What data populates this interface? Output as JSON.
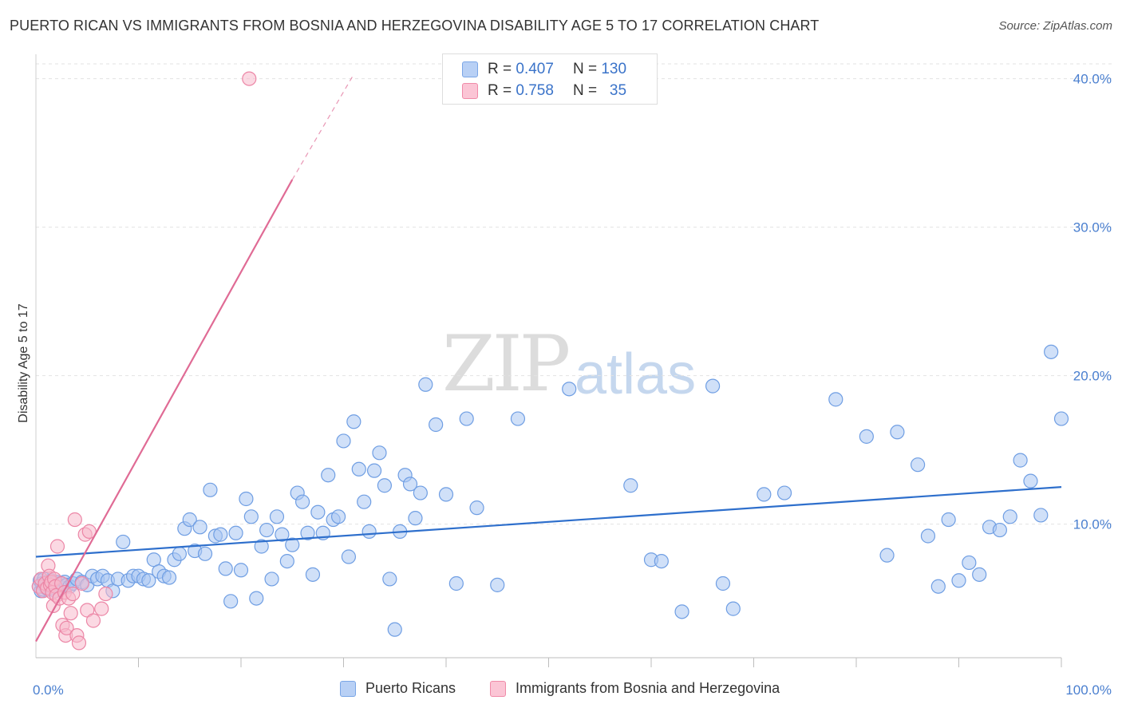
{
  "title": "PUERTO RICAN VS IMMIGRANTS FROM BOSNIA AND HERZEGOVINA DISABILITY AGE 5 TO 17 CORRELATION CHART",
  "source": "Source: ZipAtlas.com",
  "watermark": {
    "zip": "ZIP",
    "atlas": "atlas"
  },
  "legend_top": {
    "rows": [
      {
        "r_label": "R =",
        "r_value": "0.407",
        "n_label": "N =",
        "n_value": "130"
      },
      {
        "r_label": "R =",
        "r_value": "0.758",
        "n_label": "N =",
        "n_value": "35"
      }
    ]
  },
  "legend_bottom": [
    "Puerto Ricans",
    "Immigrants from Bosnia and Herzegovina"
  ],
  "colors": {
    "blue_fill": "#a9c6f2",
    "blue_stroke": "#6f9ee3",
    "blue_line": "#2e6fcc",
    "pink_fill": "#f7b9cc",
    "pink_stroke": "#ec86a6",
    "pink_line": "#e06b95"
  },
  "chart_data": {
    "type": "scatter",
    "title": "PUERTO RICAN VS IMMIGRANTS FROM BOSNIA AND HERZEGOVINA DISABILITY AGE 5 TO 17 CORRELATION CHART",
    "xlabel": "",
    "ylabel": "Disability Age 5 to 17",
    "xlim": [
      0,
      100
    ],
    "ylim": [
      1,
      41
    ],
    "x_tick_labels": [
      "0.0%",
      "100.0%"
    ],
    "y_ticks": [
      10,
      20,
      30,
      40
    ],
    "y_tick_labels": [
      "10.0%",
      "20.0%",
      "30.0%",
      "40.0%"
    ],
    "grid": true,
    "legend_position": "top-center",
    "series": [
      {
        "name": "Puerto Ricans",
        "R": 0.407,
        "N": 130,
        "trend": {
          "x": [
            0,
            100
          ],
          "y": [
            7.8,
            12.5
          ]
        },
        "points": [
          [
            0.3,
            5.8
          ],
          [
            0.4,
            6.2
          ],
          [
            0.5,
            5.5
          ],
          [
            0.6,
            6.0
          ],
          [
            0.7,
            5.6
          ],
          [
            0.8,
            6.3
          ],
          [
            0.9,
            5.9
          ],
          [
            1.0,
            5.7
          ],
          [
            1.1,
            6.1
          ],
          [
            1.2,
            5.6
          ],
          [
            1.3,
            6.0
          ],
          [
            1.4,
            5.8
          ],
          [
            1.5,
            6.2
          ],
          [
            1.6,
            5.7
          ],
          [
            1.7,
            6.0
          ],
          [
            1.8,
            5.9
          ],
          [
            1.9,
            5.5
          ],
          [
            2.0,
            6.1
          ],
          [
            2.2,
            5.8
          ],
          [
            2.4,
            6.0
          ],
          [
            2.6,
            5.7
          ],
          [
            2.8,
            6.1
          ],
          [
            3.0,
            5.9
          ],
          [
            3.3,
            5.8
          ],
          [
            3.6,
            6.0
          ],
          [
            4.0,
            6.3
          ],
          [
            4.5,
            6.1
          ],
          [
            5.0,
            5.9
          ],
          [
            5.5,
            6.5
          ],
          [
            6.0,
            6.3
          ],
          [
            6.5,
            6.5
          ],
          [
            7.0,
            6.2
          ],
          [
            7.5,
            5.5
          ],
          [
            8.0,
            6.3
          ],
          [
            8.5,
            8.8
          ],
          [
            9.0,
            6.2
          ],
          [
            9.5,
            6.5
          ],
          [
            10.0,
            6.5
          ],
          [
            10.5,
            6.3
          ],
          [
            11.0,
            6.2
          ],
          [
            11.5,
            7.6
          ],
          [
            12.0,
            6.8
          ],
          [
            12.5,
            6.5
          ],
          [
            13.0,
            6.4
          ],
          [
            13.5,
            7.6
          ],
          [
            14.0,
            8.0
          ],
          [
            14.5,
            9.7
          ],
          [
            15.0,
            10.3
          ],
          [
            15.5,
            8.2
          ],
          [
            16.0,
            9.8
          ],
          [
            16.5,
            8.0
          ],
          [
            17.0,
            12.3
          ],
          [
            17.5,
            9.2
          ],
          [
            18.0,
            9.3
          ],
          [
            18.5,
            7.0
          ],
          [
            19.0,
            4.8
          ],
          [
            19.5,
            9.4
          ],
          [
            20.0,
            6.9
          ],
          [
            20.5,
            11.7
          ],
          [
            21.0,
            10.5
          ],
          [
            21.5,
            5.0
          ],
          [
            22.0,
            8.5
          ],
          [
            22.5,
            9.6
          ],
          [
            23.0,
            6.3
          ],
          [
            23.5,
            10.5
          ],
          [
            24.0,
            9.3
          ],
          [
            24.5,
            7.5
          ],
          [
            25.0,
            8.6
          ],
          [
            25.5,
            12.1
          ],
          [
            26.0,
            11.5
          ],
          [
            26.5,
            9.4
          ],
          [
            27.0,
            6.6
          ],
          [
            27.5,
            10.8
          ],
          [
            28.0,
            9.4
          ],
          [
            28.5,
            13.3
          ],
          [
            29.0,
            10.3
          ],
          [
            29.5,
            10.5
          ],
          [
            30.0,
            15.6
          ],
          [
            30.5,
            7.8
          ],
          [
            31.0,
            16.9
          ],
          [
            31.5,
            13.7
          ],
          [
            32.0,
            11.5
          ],
          [
            32.5,
            9.5
          ],
          [
            33.0,
            13.6
          ],
          [
            33.5,
            14.8
          ],
          [
            34.0,
            12.6
          ],
          [
            34.5,
            6.3
          ],
          [
            35.0,
            2.9
          ],
          [
            35.5,
            9.5
          ],
          [
            36.0,
            13.3
          ],
          [
            36.5,
            12.7
          ],
          [
            37.0,
            10.4
          ],
          [
            37.5,
            12.1
          ],
          [
            38.0,
            19.4
          ],
          [
            39.0,
            16.7
          ],
          [
            40.0,
            12.0
          ],
          [
            41.0,
            6.0
          ],
          [
            42.0,
            17.1
          ],
          [
            43.0,
            11.1
          ],
          [
            45.0,
            5.9
          ],
          [
            47.0,
            17.1
          ],
          [
            52.0,
            19.1
          ],
          [
            58.0,
            12.6
          ],
          [
            60.0,
            7.6
          ],
          [
            61.0,
            7.5
          ],
          [
            63.0,
            4.1
          ],
          [
            66.0,
            19.3
          ],
          [
            67.0,
            6.0
          ],
          [
            68.0,
            4.3
          ],
          [
            71.0,
            12.0
          ],
          [
            73.0,
            12.1
          ],
          [
            78.0,
            18.4
          ],
          [
            81.0,
            15.9
          ],
          [
            83.0,
            7.9
          ],
          [
            84.0,
            16.2
          ],
          [
            86.0,
            14.0
          ],
          [
            87.0,
            9.2
          ],
          [
            88.0,
            5.8
          ],
          [
            89.0,
            10.3
          ],
          [
            90.0,
            6.2
          ],
          [
            91.0,
            7.4
          ],
          [
            92.0,
            6.6
          ],
          [
            93.0,
            9.8
          ],
          [
            94.0,
            9.6
          ],
          [
            95.0,
            10.5
          ],
          [
            96.0,
            14.3
          ],
          [
            97.0,
            12.9
          ],
          [
            98.0,
            10.6
          ],
          [
            99.0,
            21.6
          ],
          [
            100.0,
            17.1
          ]
        ]
      },
      {
        "name": "Immigrants from Bosnia and Herzegovina",
        "R": 0.758,
        "N": 35,
        "trend": {
          "x": [
            0,
            25
          ],
          "y": [
            2.1,
            33.2
          ],
          "dashed_to": {
            "x": 31,
            "y": 40.3
          }
        },
        "points": [
          [
            0.3,
            5.8
          ],
          [
            0.5,
            6.3
          ],
          [
            0.7,
            5.5
          ],
          [
            0.9,
            6.0
          ],
          [
            1.1,
            5.7
          ],
          [
            1.2,
            7.2
          ],
          [
            1.3,
            6.5
          ],
          [
            1.4,
            5.9
          ],
          [
            1.5,
            6.1
          ],
          [
            1.6,
            5.4
          ],
          [
            1.7,
            4.5
          ],
          [
            1.8,
            6.3
          ],
          [
            1.9,
            5.8
          ],
          [
            2.0,
            5.2
          ],
          [
            2.1,
            8.5
          ],
          [
            2.3,
            5.0
          ],
          [
            2.5,
            6.0
          ],
          [
            2.6,
            3.2
          ],
          [
            2.8,
            5.4
          ],
          [
            2.9,
            2.5
          ],
          [
            3.0,
            3.0
          ],
          [
            3.2,
            5.0
          ],
          [
            3.4,
            4.0
          ],
          [
            3.6,
            5.3
          ],
          [
            3.8,
            10.3
          ],
          [
            4.0,
            2.5
          ],
          [
            4.2,
            2.0
          ],
          [
            4.5,
            6.0
          ],
          [
            4.8,
            9.3
          ],
          [
            5.0,
            4.2
          ],
          [
            5.2,
            9.5
          ],
          [
            5.6,
            3.5
          ],
          [
            6.4,
            4.3
          ],
          [
            6.8,
            5.3
          ],
          [
            20.8,
            40.0
          ]
        ]
      }
    ]
  }
}
